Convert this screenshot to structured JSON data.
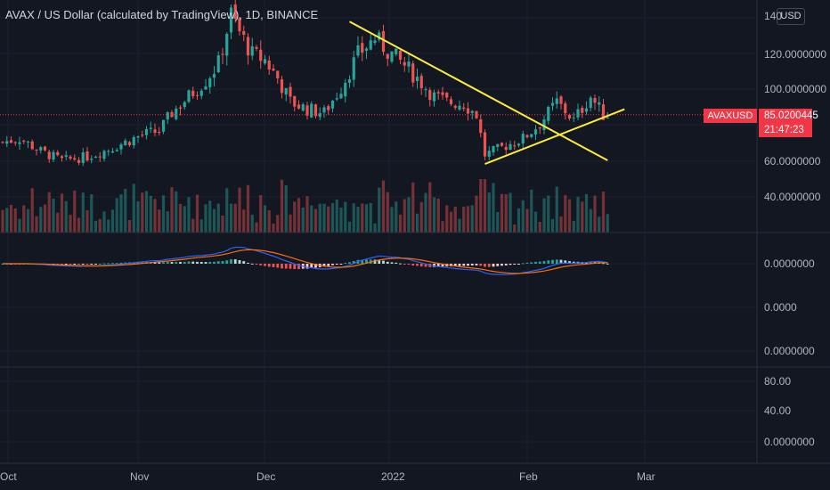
{
  "header": {
    "title": "AVAX / US Dollar (calculated by TradingView), 1D, BINANCE",
    "currency_button": "USD"
  },
  "price_tag": {
    "symbol": "AVAXUSD",
    "price": "85.0200445",
    "countdown": "21:47:23"
  },
  "price_axis_labels": [
    "140",
    "120.0000000",
    "100.0000000",
    "60.0000000",
    "40.0000000"
  ],
  "macd_axis_labels": [
    "0.0000000",
    "0.0000",
    "0.0000000"
  ],
  "rsi_axis_labels": [
    "80.00",
    "40.00",
    "0.0000000"
  ],
  "time_axis_labels": [
    "Oct",
    "Nov",
    "Dec",
    "2022",
    "Feb",
    "Mar"
  ],
  "colors": {
    "background": "#131722",
    "up": "#26a69a",
    "down": "#ef5350",
    "trendline": "#ffeb3b",
    "macd_line": "#2962ff",
    "signal_line": "#ff6d00",
    "price_line": "#f23645"
  },
  "chart_data": {
    "type": "candlestick",
    "title": "AVAX / US Dollar (calculated by TradingView), 1D, BINANCE",
    "interval": "1D",
    "exchange": "BINANCE",
    "last_price": 85.0200445,
    "x_range": [
      "2021-09-30",
      "2022-03-05"
    ],
    "y_range": [
      25,
      150
    ],
    "close_anchors": [
      {
        "date": "2021-09-30",
        "close": 70
      },
      {
        "date": "2021-10-04",
        "close": 72
      },
      {
        "date": "2021-10-09",
        "close": 65
      },
      {
        "date": "2021-10-14",
        "close": 60
      },
      {
        "date": "2021-10-20",
        "close": 62
      },
      {
        "date": "2021-10-25",
        "close": 66
      },
      {
        "date": "2021-10-30",
        "close": 71
      },
      {
        "date": "2021-11-02",
        "close": 74
      },
      {
        "date": "2021-11-06",
        "close": 76
      },
      {
        "date": "2021-11-09",
        "close": 86
      },
      {
        "date": "2021-11-13",
        "close": 95
      },
      {
        "date": "2021-11-17",
        "close": 104
      },
      {
        "date": "2021-11-20",
        "close": 113
      },
      {
        "date": "2021-11-23",
        "close": 140
      },
      {
        "date": "2021-11-25",
        "close": 130
      },
      {
        "date": "2021-11-28",
        "close": 118
      },
      {
        "date": "2021-12-01",
        "close": 115
      },
      {
        "date": "2021-12-04",
        "close": 105
      },
      {
        "date": "2021-12-07",
        "close": 92
      },
      {
        "date": "2021-12-11",
        "close": 88
      },
      {
        "date": "2021-12-15",
        "close": 86
      },
      {
        "date": "2021-12-19",
        "close": 100
      },
      {
        "date": "2021-12-23",
        "close": 118
      },
      {
        "date": "2021-12-27",
        "close": 127
      },
      {
        "date": "2021-12-30",
        "close": 120
      },
      {
        "date": "2022-01-03",
        "close": 112
      },
      {
        "date": "2022-01-06",
        "close": 105
      },
      {
        "date": "2022-01-10",
        "close": 95
      },
      {
        "date": "2022-01-13",
        "close": 92
      },
      {
        "date": "2022-01-17",
        "close": 91
      },
      {
        "date": "2022-01-20",
        "close": 85
      },
      {
        "date": "2022-01-22",
        "close": 63
      },
      {
        "date": "2022-01-26",
        "close": 67
      },
      {
        "date": "2022-01-31",
        "close": 72
      },
      {
        "date": "2022-02-04",
        "close": 80
      },
      {
        "date": "2022-02-08",
        "close": 92
      },
      {
        "date": "2022-02-12",
        "close": 82
      },
      {
        "date": "2022-02-16",
        "close": 95
      },
      {
        "date": "2022-02-19",
        "close": 85
      }
    ],
    "trendlines": [
      {
        "name": "descending resistance",
        "from": {
          "date": "2021-12-21",
          "price": 136
        },
        "to": {
          "date": "2022-02-20",
          "price": 60
        }
      },
      {
        "name": "ascending support",
        "from": {
          "date": "2022-01-22",
          "price": 58
        },
        "to": {
          "date": "2022-02-24",
          "price": 88
        }
      }
    ],
    "volume": {
      "max_relative": 1.0
    },
    "macd": {
      "zero_line": 0
    },
    "rsi": {
      "levels": [
        80,
        40,
        0
      ]
    }
  }
}
